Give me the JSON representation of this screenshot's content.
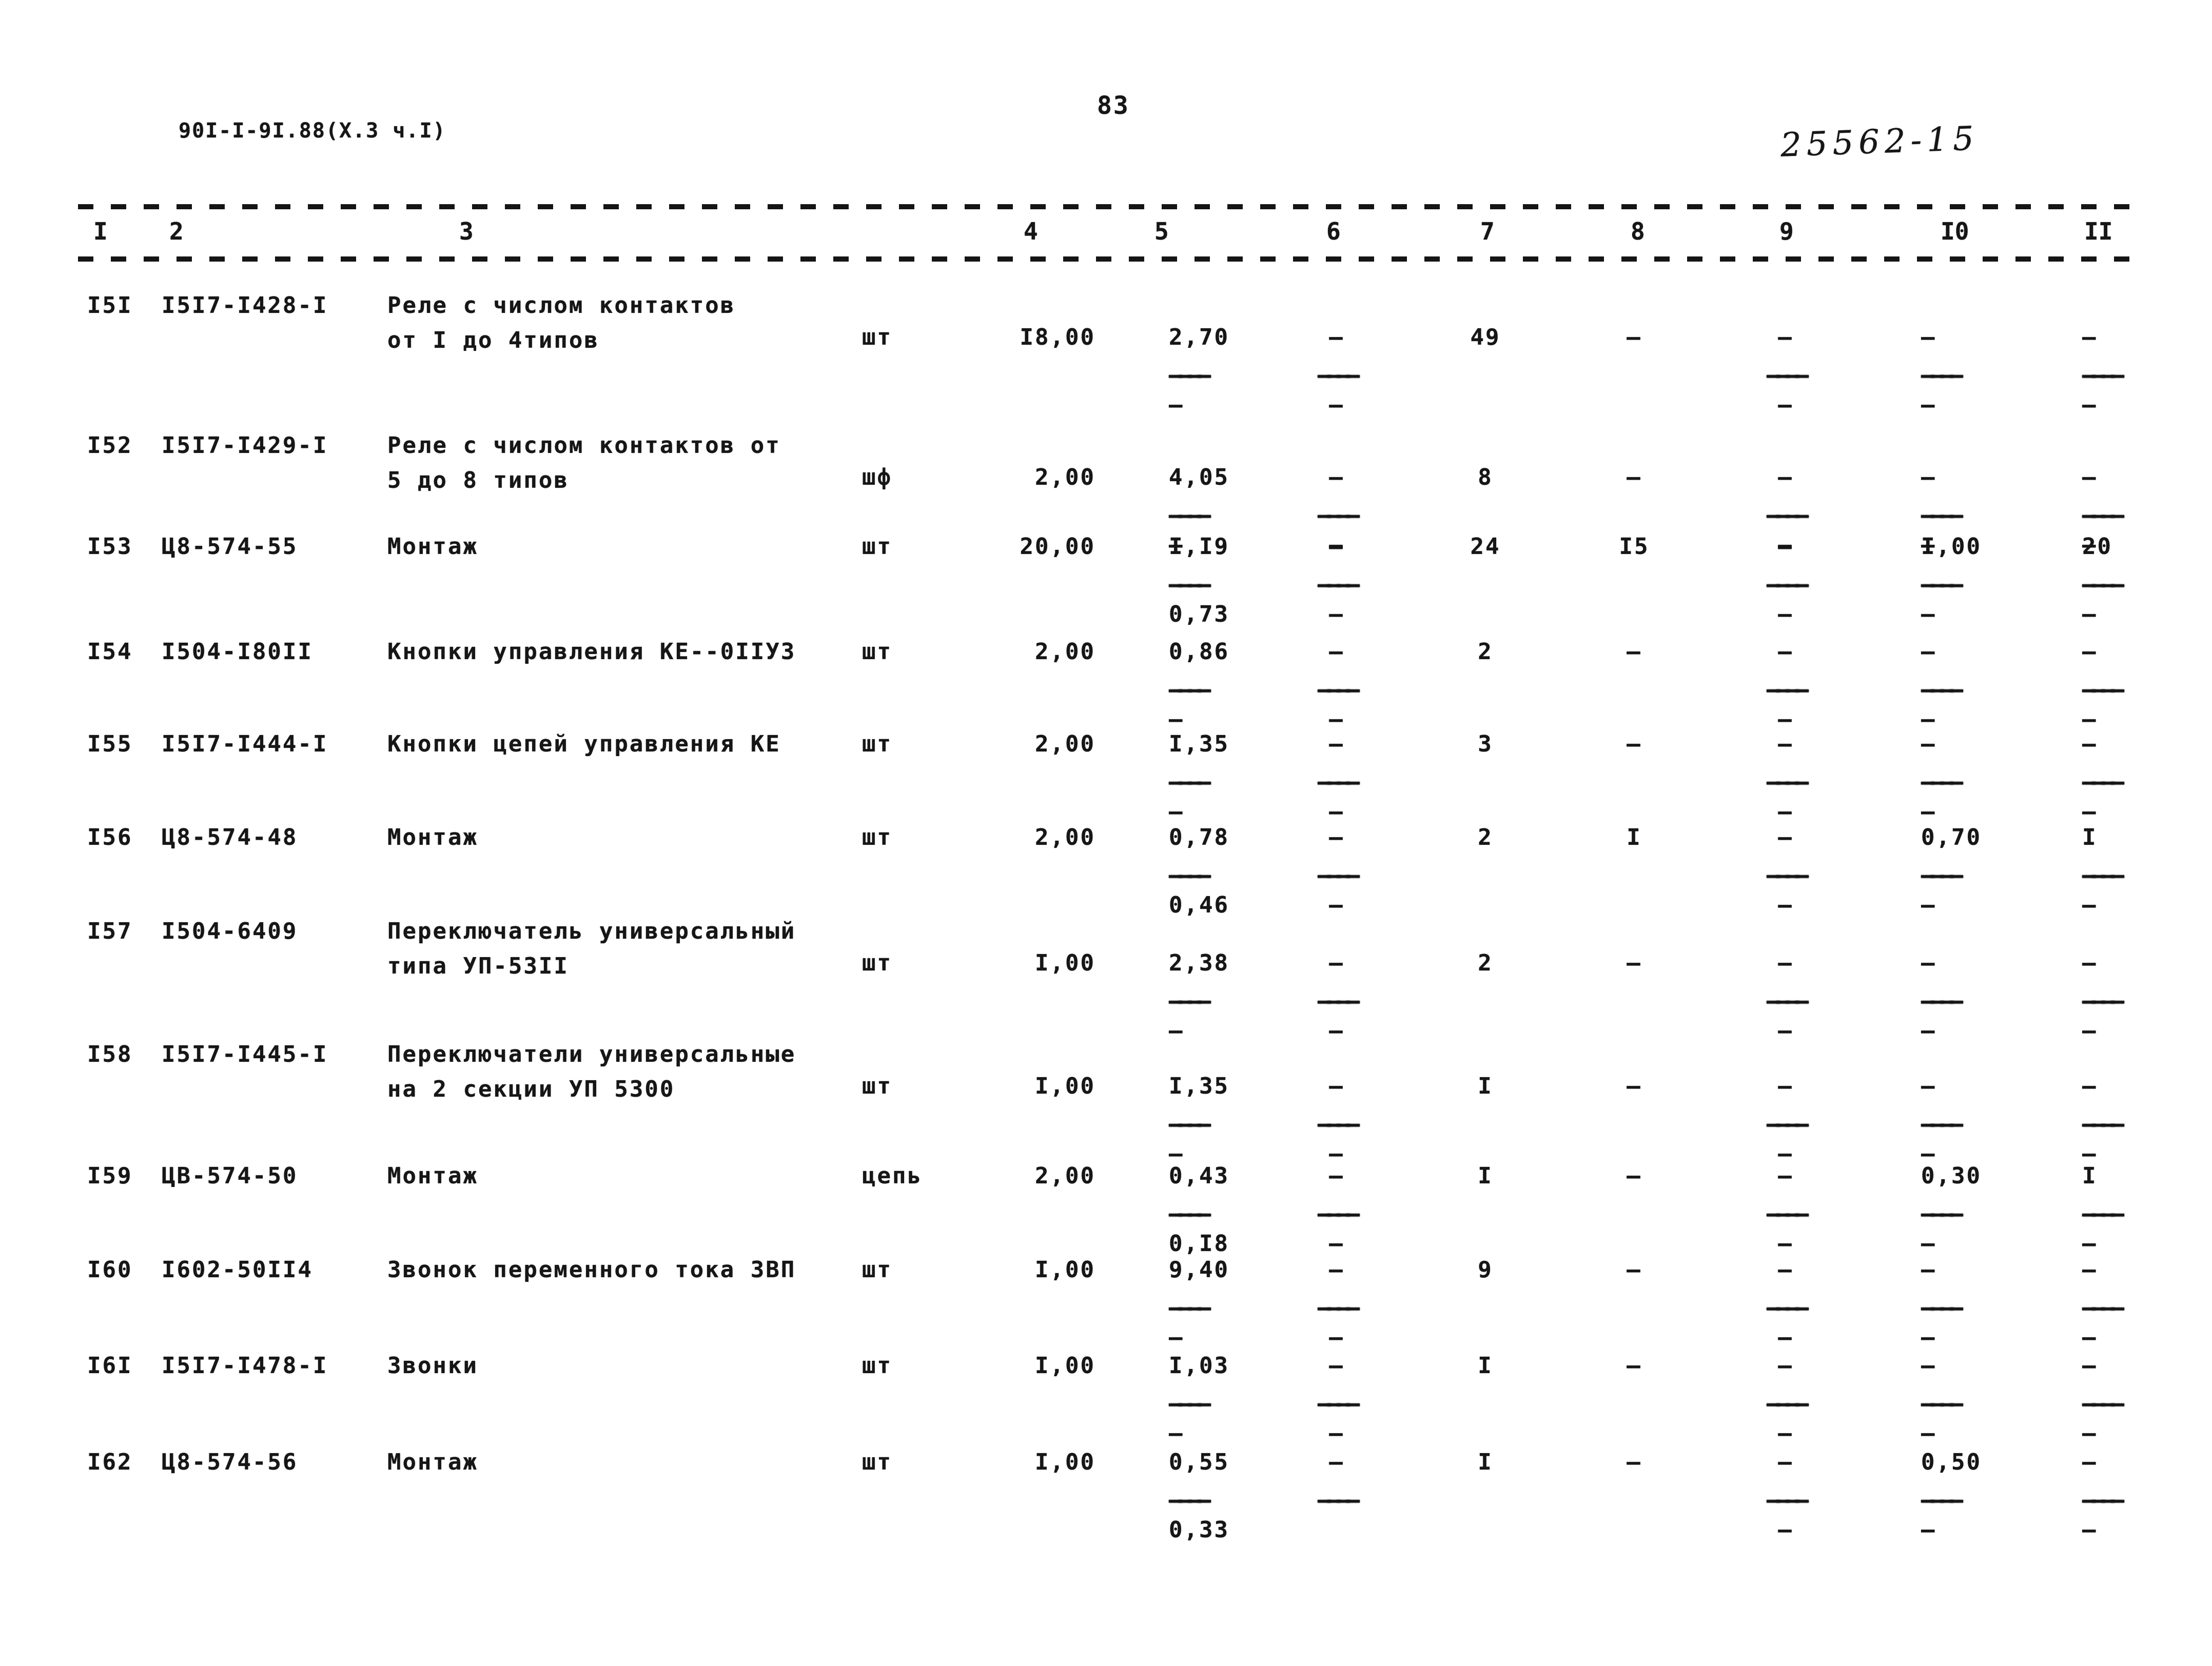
{
  "meta": {
    "doc_code": "90I-I-9I.88(X.3 ч.I)",
    "page_number": "83",
    "handwritten_number": "25562-15"
  },
  "table": {
    "header": {
      "cols": [
        "I",
        "2",
        "3",
        "4",
        "5",
        "6",
        "7",
        "8",
        "9",
        "I0",
        "II"
      ]
    },
    "rows": [
      {
        "num": "I5I",
        "code": "I5I7-I428-I",
        "d1": "Реле с числом контактов",
        "d2": "от I до 4типов",
        "unit": "шт",
        "qty": "I8,00",
        "c5t": "2,70",
        "c5m": "————",
        "c5b": "—",
        "c6t": "–",
        "c6m": "————",
        "c6b": "—",
        "c7": "49",
        "c8": "–",
        "c9t": "–",
        "c9m": "————",
        "c9b": "—",
        "c10t": "–",
        "c10m": "————",
        "c10b": "—",
        "c11t": "–",
        "c11m": "————",
        "c11b": "—"
      },
      {
        "num": "I52",
        "code": "I5I7-I429-I",
        "d1": "Реле с числом контактов от",
        "d2": "5 до 8 типов",
        "unit": "шф",
        "qty": "2,00",
        "c5t": "4,05",
        "c5m": "————",
        "c5b": "—",
        "c6t": "–",
        "c6m": "————",
        "c6b": "—",
        "c7": "8",
        "c8": "–",
        "c9t": "–",
        "c9m": "————",
        "c9b": "—",
        "c10t": "–",
        "c10m": "————",
        "c10b": "—",
        "c11t": "–",
        "c11m": "————",
        "c11b": "—"
      },
      {
        "num": "I53",
        "code": "Ц8-574-55",
        "d1": "Монтаж",
        "d2": "",
        "unit": "шт",
        "qty": "20,00",
        "c5t": "I,I9",
        "c5m": "————",
        "c5b": "0,73",
        "c6t": "–",
        "c6m": "————",
        "c6b": "—",
        "c7": "24",
        "c8": "I5",
        "c9t": "–",
        "c9m": "————",
        "c9b": "—",
        "c10t": "I,00",
        "c10m": "————",
        "c10b": "—",
        "c11t": "20",
        "c11m": "————",
        "c11b": "—"
      },
      {
        "num": "I54",
        "code": "I504-I80II",
        "d1": "Кнопки управления КЕ--0IIУ3",
        "d2": "",
        "unit": "шт",
        "qty": "2,00",
        "c5t": "0,86",
        "c5m": "————",
        "c5b": "—",
        "c6t": "–",
        "c6m": "————",
        "c6b": "—",
        "c7": "2",
        "c8": "–",
        "c9t": "–",
        "c9m": "————",
        "c9b": "—",
        "c10t": "–",
        "c10m": "————",
        "c10b": "—",
        "c11t": "–",
        "c11m": "————",
        "c11b": "—"
      },
      {
        "num": "I55",
        "code": "I5I7-I444-I",
        "d1": "Кнопки цепей управления КЕ",
        "d2": "",
        "unit": "шт",
        "qty": "2,00",
        "c5t": "I,35",
        "c5m": "————",
        "c5b": "—",
        "c6t": "–",
        "c6m": "————",
        "c6b": "—",
        "c7": "3",
        "c8": "–",
        "c9t": "–",
        "c9m": "————",
        "c9b": "—",
        "c10t": "–",
        "c10m": "————",
        "c10b": "—",
        "c11t": "–",
        "c11m": "————",
        "c11b": "—"
      },
      {
        "num": "I56",
        "code": "Ц8-574-48",
        "d1": "Монтаж",
        "d2": "",
        "unit": "шт",
        "qty": "2,00",
        "c5t": "0,78",
        "c5m": "————",
        "c5b": "0,46",
        "c6t": "–",
        "c6m": "————",
        "c6b": "—",
        "c7": "2",
        "c8": "I",
        "c9t": "–",
        "c9m": "————",
        "c9b": "—",
        "c10t": "0,70",
        "c10m": "————",
        "c10b": "—",
        "c11t": "I",
        "c11m": "————",
        "c11b": "—"
      },
      {
        "num": "I57",
        "code": "I504-6409",
        "d1": "Переключатель универсальный",
        "d2": "типа УП-53II",
        "unit": "шт",
        "qty": "I,00",
        "c5t": "2,38",
        "c5m": "————",
        "c5b": "—",
        "c6t": "–",
        "c6m": "————",
        "c6b": "—",
        "c7": "2",
        "c8": "–",
        "c9t": "–",
        "c9m": "————",
        "c9b": "—",
        "c10t": "–",
        "c10m": "————",
        "c10b": "—",
        "c11t": "–",
        "c11m": "————",
        "c11b": "—"
      },
      {
        "num": "I58",
        "code": "I5I7-I445-I",
        "d1": "Переключатели универсальные",
        "d2": "на 2 секции УП 5300",
        "unit": "шт",
        "qty": "I,00",
        "c5t": "I,35",
        "c5m": "————",
        "c5b": "—",
        "c6t": "–",
        "c6m": "————",
        "c6b": "—",
        "c7": "I",
        "c8": "–",
        "c9t": "–",
        "c9m": "————",
        "c9b": "—",
        "c10t": "–",
        "c10m": "————",
        "c10b": "—",
        "c11t": "–",
        "c11m": "————",
        "c11b": "—"
      },
      {
        "num": "I59",
        "code": "ЦВ-574-50",
        "d1": "Монтаж",
        "d2": "",
        "unit": "цепь",
        "qty": "2,00",
        "c5t": "0,43",
        "c5m": "————",
        "c5b": "0,I8",
        "c6t": "–",
        "c6m": "————",
        "c6b": "—",
        "c7": "I",
        "c8": "–",
        "c9t": "–",
        "c9m": "————",
        "c9b": "—",
        "c10t": "0,30",
        "c10m": "————",
        "c10b": "—",
        "c11t": "I",
        "c11m": "————",
        "c11b": "—"
      },
      {
        "num": "I60",
        "code": "I602-50II4",
        "d1": "Звонок переменного тока ЗВП",
        "d2": "",
        "unit": "шт",
        "qty": "I,00",
        "c5t": "9,40",
        "c5m": "————",
        "c5b": "—",
        "c6t": "–",
        "c6m": "————",
        "c6b": "—",
        "c7": "9",
        "c8": "–",
        "c9t": "–",
        "c9m": "————",
        "c9b": "—",
        "c10t": "–",
        "c10m": "————",
        "c10b": "—",
        "c11t": "–",
        "c11m": "————",
        "c11b": "—"
      },
      {
        "num": "I6I",
        "code": "I5I7-I478-I",
        "d1": "Звонки",
        "d2": "",
        "unit": "шт",
        "qty": "I,00",
        "c5t": "I,03",
        "c5m": "————",
        "c5b": "—",
        "c6t": "–",
        "c6m": "————",
        "c6b": "—",
        "c7": "I",
        "c8": "–",
        "c9t": "–",
        "c9m": "————",
        "c9b": "—",
        "c10t": "–",
        "c10m": "————",
        "c10b": "—",
        "c11t": "–",
        "c11m": "————",
        "c11b": "—"
      },
      {
        "num": "I62",
        "code": "Ц8-574-56",
        "d1": "Монтаж",
        "d2": "",
        "unit": "шт",
        "qty": "I,00",
        "c5t": "0,55",
        "c5m": "————",
        "c5b": "0,33",
        "c6t": "–",
        "c6m": "————",
        "c6b": "",
        "c7": "I",
        "c8": "–",
        "c9t": "–",
        "c9m": "————",
        "c9b": "—",
        "c10t": "0,50",
        "c10m": "————",
        "c10b": "—",
        "c11t": "–",
        "c11m": "————",
        "c11b": "—"
      }
    ]
  }
}
